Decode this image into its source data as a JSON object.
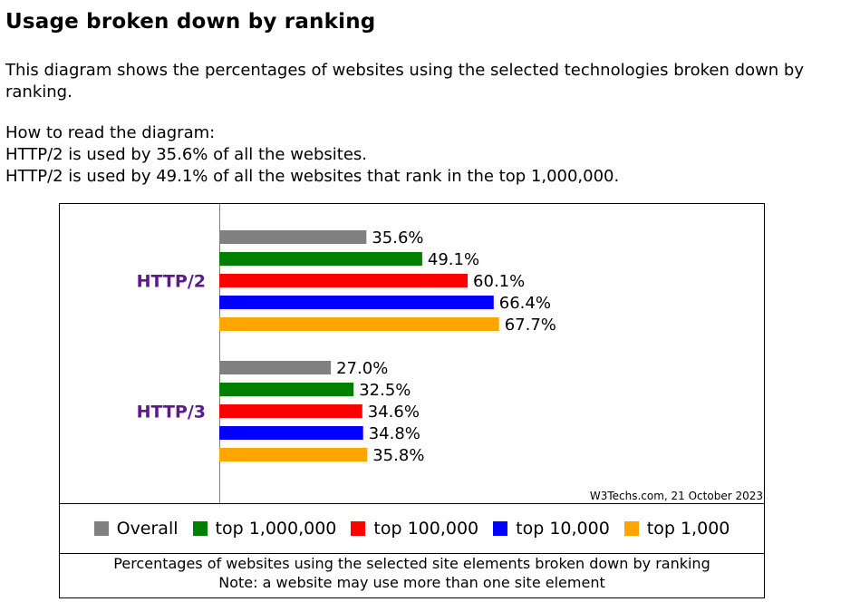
{
  "heading": "Usage broken down by ranking",
  "intro": "This diagram shows the percentages of websites using the selected technologies broken down by ranking.",
  "how_to_read": {
    "title": "How to read the diagram:",
    "line1": "HTTP/2 is used by 35.6% of all the websites.",
    "line2": "HTTP/2 is used by 49.1% of all the websites that rank in the top 1,000,000."
  },
  "chart_data": {
    "type": "bar",
    "orientation": "horizontal",
    "categories": [
      "HTTP/2",
      "HTTP/3"
    ],
    "series": [
      {
        "name": "Overall",
        "color": "#808080",
        "values": [
          35.6,
          27.0
        ],
        "labels": [
          "35.6%",
          "27.0%"
        ]
      },
      {
        "name": "top 1,000,000",
        "color": "#008000",
        "values": [
          49.1,
          32.5
        ],
        "labels": [
          "49.1%",
          "32.5%"
        ]
      },
      {
        "name": "top 100,000",
        "color": "#ff0000",
        "values": [
          60.1,
          34.6
        ],
        "labels": [
          "60.1%",
          "34.6%"
        ]
      },
      {
        "name": "top 10,000",
        "color": "#0000ff",
        "values": [
          66.4,
          34.8
        ],
        "labels": [
          "66.4%",
          "34.8%"
        ]
      },
      {
        "name": "top 1,000",
        "color": "#ffa500",
        "values": [
          67.7,
          35.8
        ],
        "labels": [
          "67.7%",
          "35.8%"
        ]
      }
    ],
    "xlim": [
      0,
      100
    ],
    "category_label_color": "#5a1a8c",
    "source_note": "W3Techs.com, 21 October 2023"
  },
  "caption": {
    "line1": "Percentages of websites using the selected site elements broken down by ranking",
    "line2": "Note: a website may use more than one site element"
  }
}
